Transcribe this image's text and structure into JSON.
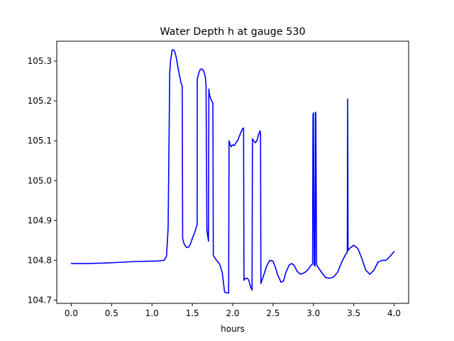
{
  "chart_data": {
    "type": "line",
    "title": "Water Depth h at gauge 530",
    "xlabel": "hours",
    "ylabel": "",
    "xlim": [
      -0.18,
      4.18
    ],
    "ylim": [
      104.692,
      105.35
    ],
    "grid": false,
    "xticks": [
      0.0,
      0.5,
      1.0,
      1.5,
      2.0,
      2.5,
      3.0,
      3.5,
      4.0
    ],
    "xtick_labels": [
      "0.0",
      "0.5",
      "1.0",
      "1.5",
      "2.0",
      "2.5",
      "3.0",
      "3.5",
      "4.0"
    ],
    "yticks": [
      104.7,
      104.8,
      104.9,
      105.0,
      105.1,
      105.2,
      105.3
    ],
    "ytick_labels": [
      "104.7",
      "104.8",
      "104.9",
      "105.0",
      "105.1",
      "105.2",
      "105.3"
    ],
    "series": [
      {
        "color": "#0000ff",
        "x": [
          0.0,
          0.2,
          0.4,
          0.6,
          0.8,
          1.0,
          1.05,
          1.1,
          1.15,
          1.18,
          1.2,
          1.22,
          1.23,
          1.25,
          1.27,
          1.28,
          1.3,
          1.33,
          1.36,
          1.375,
          1.38,
          1.4,
          1.43,
          1.46,
          1.48,
          1.5,
          1.53,
          1.56,
          1.561,
          1.58,
          1.6,
          1.62,
          1.64,
          1.66,
          1.67,
          1.68,
          1.681,
          1.7,
          1.705,
          1.71,
          1.72,
          1.74,
          1.755,
          1.76,
          1.8,
          1.84,
          1.87,
          1.9,
          1.93,
          1.95,
          1.955,
          1.97,
          1.98,
          2.0,
          2.02,
          2.04,
          2.06,
          2.08,
          2.1,
          2.12,
          2.135,
          2.14,
          2.16,
          2.18,
          2.2,
          2.22,
          2.24,
          2.245,
          2.26,
          2.28,
          2.3,
          2.32,
          2.34,
          2.345,
          2.35,
          2.38,
          2.42,
          2.46,
          2.5,
          2.53,
          2.56,
          2.6,
          2.63,
          2.66,
          2.7,
          2.73,
          2.76,
          2.8,
          2.84,
          2.88,
          2.91,
          2.94,
          2.97,
          2.99,
          2.995,
          3.0,
          3.01,
          3.02,
          3.025,
          3.03,
          3.04,
          3.05,
          3.1,
          3.15,
          3.2,
          3.25,
          3.3,
          3.35,
          3.4,
          3.42,
          3.425,
          3.43,
          3.45,
          3.5,
          3.55,
          3.6,
          3.65,
          3.7,
          3.75,
          3.8,
          3.85,
          3.9,
          3.95,
          4.0
        ],
        "y": [
          104.792,
          104.792,
          104.793,
          104.795,
          104.797,
          104.798,
          104.798,
          104.799,
          104.8,
          104.81,
          104.88,
          105.27,
          105.3,
          105.328,
          105.328,
          105.325,
          105.31,
          105.275,
          105.245,
          105.237,
          104.855,
          104.84,
          104.832,
          104.834,
          104.843,
          104.855,
          104.87,
          104.89,
          105.255,
          105.27,
          105.28,
          105.28,
          105.276,
          105.262,
          105.24,
          104.89,
          104.875,
          104.848,
          105.23,
          105.22,
          105.21,
          105.2,
          105.195,
          104.812,
          104.8,
          104.79,
          104.77,
          104.72,
          104.718,
          104.718,
          105.1,
          105.09,
          105.085,
          105.09,
          105.088,
          105.095,
          105.1,
          105.11,
          105.12,
          105.13,
          105.132,
          104.75,
          104.755,
          104.755,
          104.75,
          104.735,
          104.725,
          105.105,
          105.1,
          105.095,
          105.1,
          105.115,
          105.125,
          105.12,
          104.742,
          104.76,
          104.785,
          104.8,
          104.798,
          104.782,
          104.762,
          104.745,
          104.748,
          104.77,
          104.788,
          104.792,
          104.788,
          104.772,
          104.765,
          104.768,
          104.772,
          104.778,
          104.788,
          104.79,
          105.165,
          105.17,
          104.79,
          104.785,
          105.172,
          105.17,
          104.79,
          104.785,
          104.77,
          104.757,
          104.755,
          104.758,
          104.77,
          104.795,
          104.815,
          104.82,
          105.205,
          104.825,
          104.83,
          104.838,
          104.83,
          104.805,
          104.775,
          104.765,
          104.775,
          104.795,
          104.8,
          104.8,
          104.81,
          104.822
        ]
      }
    ]
  }
}
